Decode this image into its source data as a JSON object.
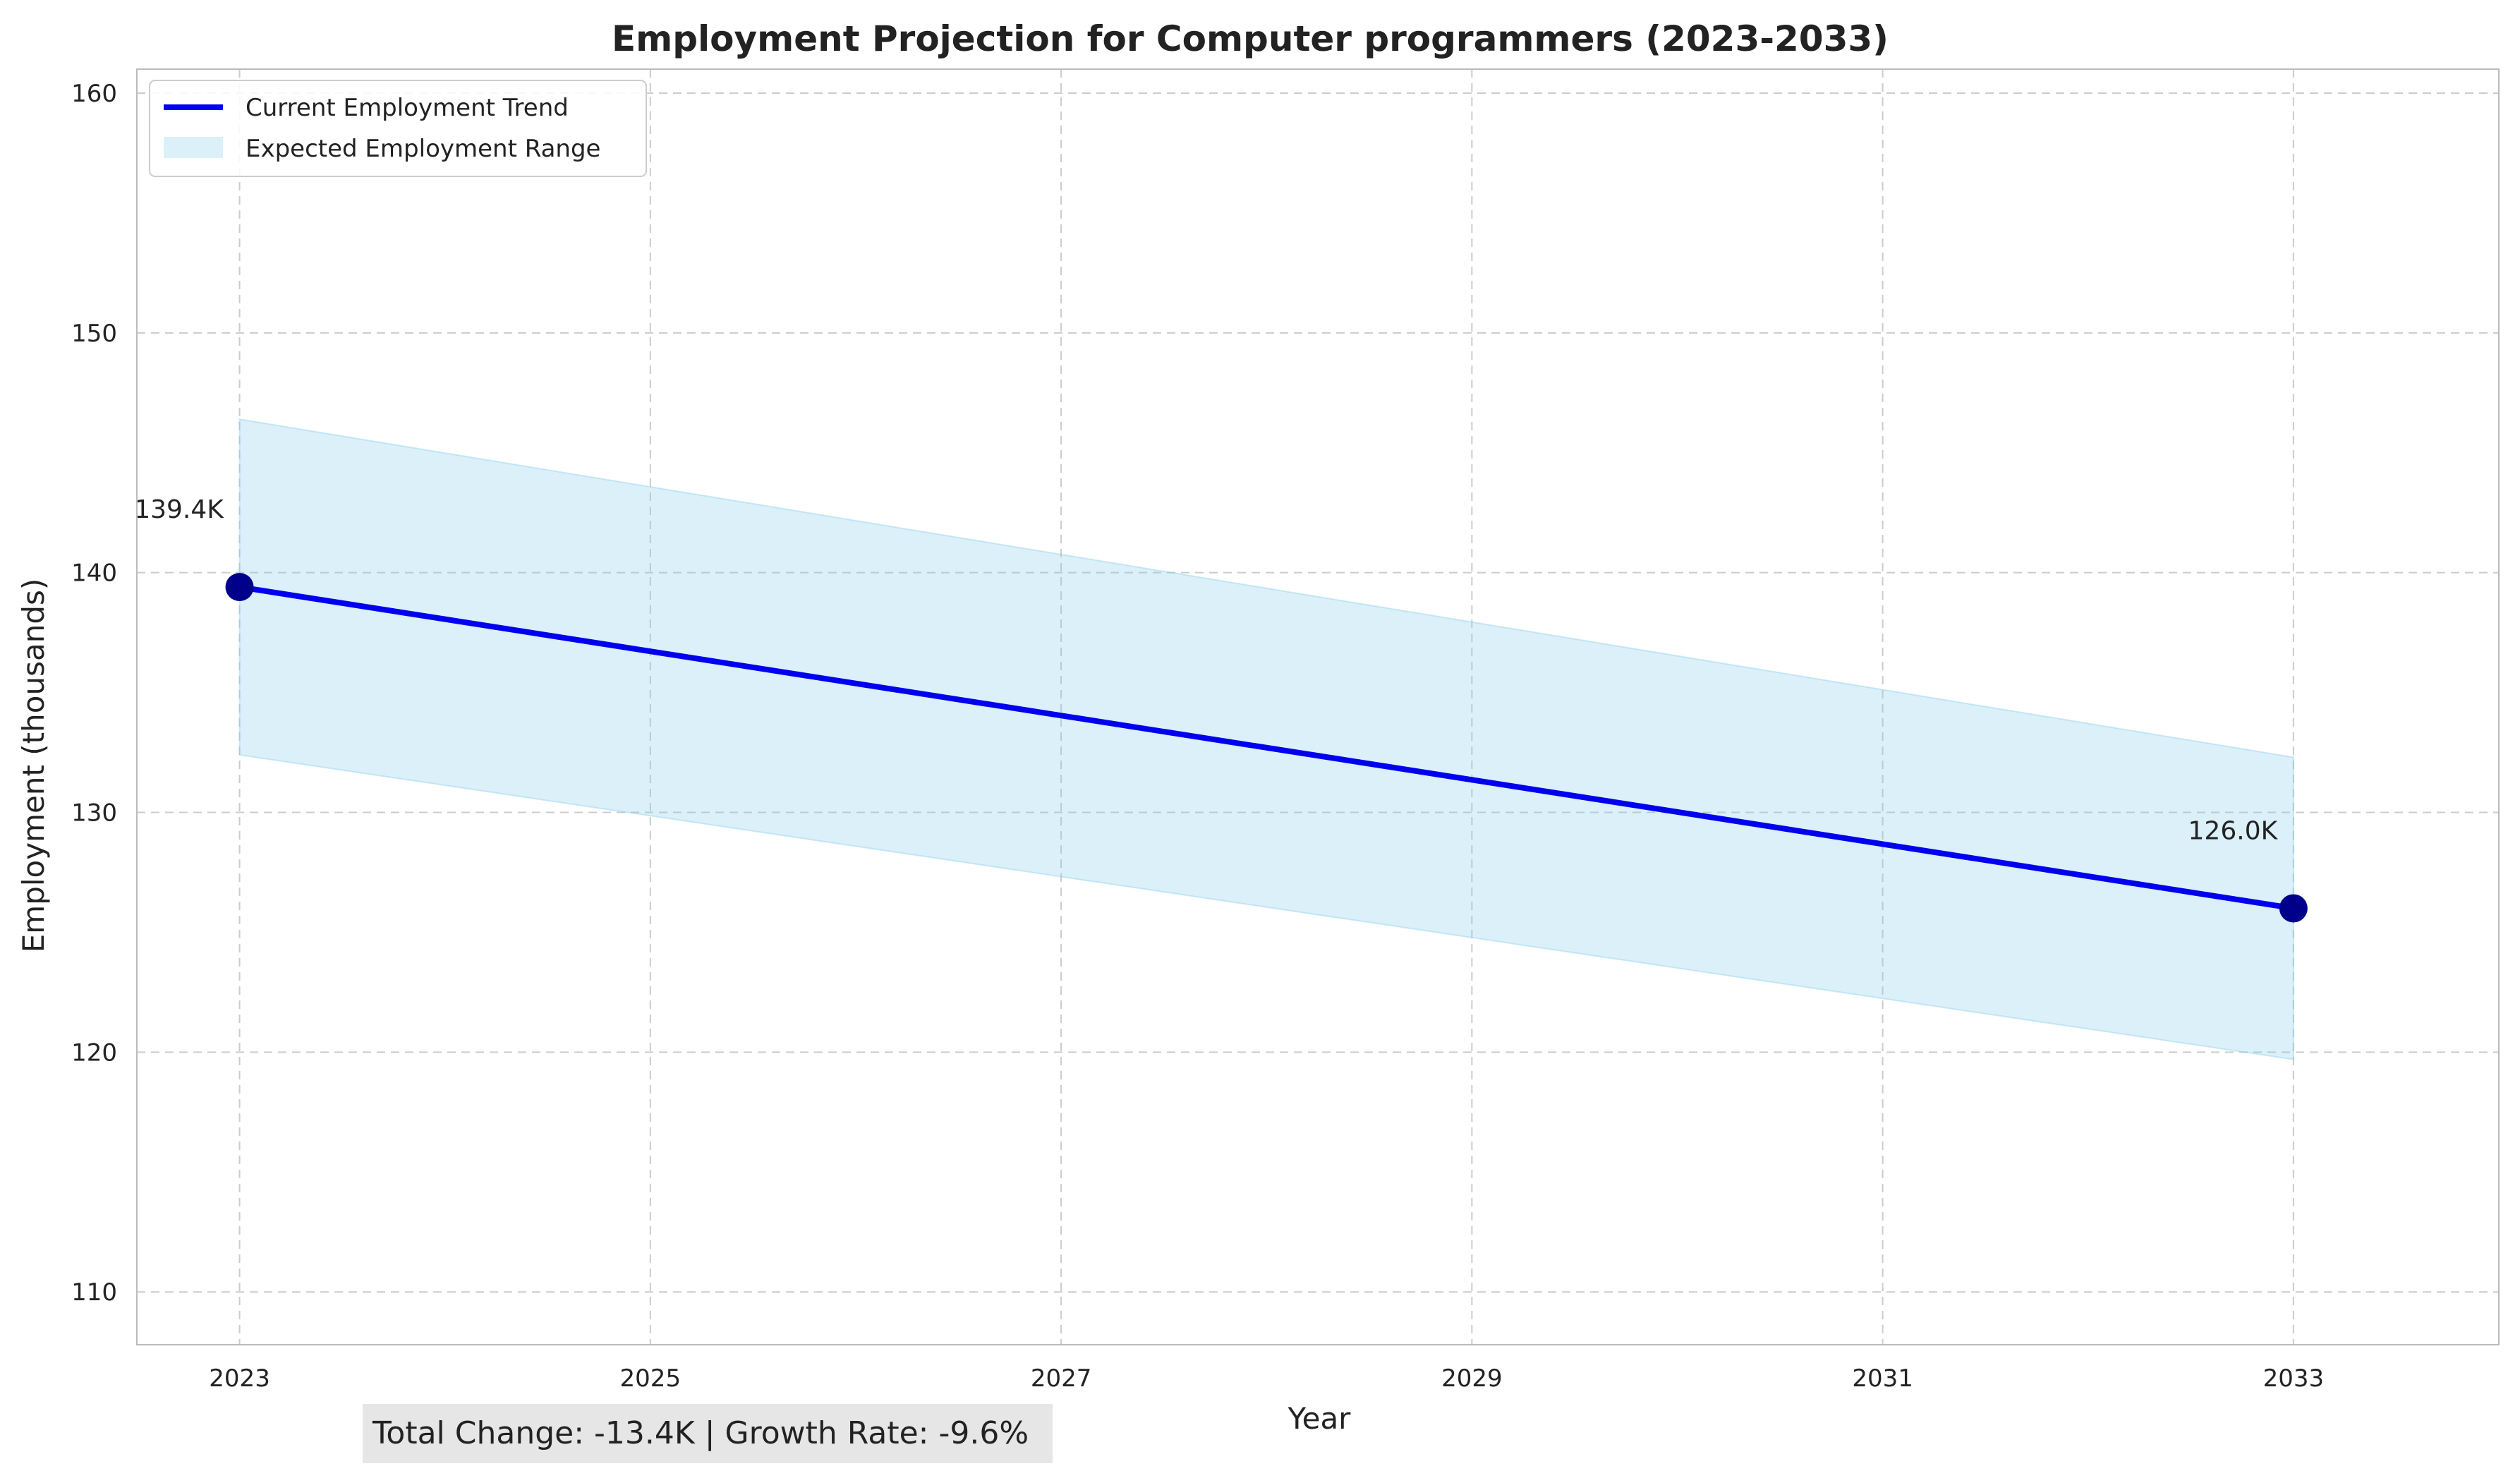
{
  "chart_data": {
    "type": "line",
    "title": "Employment Projection for Computer programmers (2023-2033)",
    "xlabel": "Year",
    "ylabel": "Employment (thousands)",
    "x_ticks": [
      "2023",
      "2025",
      "2027",
      "2029",
      "2031",
      "2033"
    ],
    "y_ticks": [
      "110",
      "120",
      "130",
      "140",
      "150",
      "160"
    ],
    "xlim": [
      2022.5,
      2034.0
    ],
    "ylim": [
      107.8,
      161.0
    ],
    "grid": true,
    "legend_position": "top-left",
    "series": [
      {
        "name": "Current Employment Trend",
        "x": [
          2023,
          2033
        ],
        "y": [
          139.4,
          126.0
        ],
        "color": "#0000ee"
      }
    ],
    "range": {
      "name": "Expected Employment Range",
      "x": [
        2023,
        2033
      ],
      "lower": [
        132.4,
        119.7
      ],
      "upper": [
        146.4,
        132.3
      ],
      "color": "#87ceeb"
    },
    "markers": {
      "x": [
        2023,
        2033
      ],
      "y": [
        139.4,
        126.0
      ],
      "color": "#00008b"
    },
    "annotations": [
      {
        "x": 2023,
        "y": 139.4,
        "text": "139.4K"
      },
      {
        "x": 2033,
        "y": 126.0,
        "text": "126.0K"
      }
    ],
    "summary": "Total Change: -13.4K | Growth Rate: -9.6%"
  }
}
